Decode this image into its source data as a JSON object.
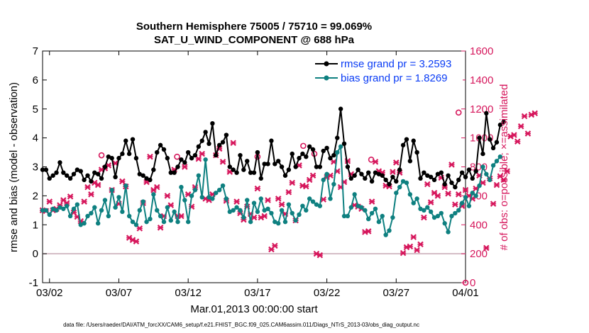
{
  "chart_data": {
    "type": "line",
    "title": "Southern Hemisphere 75005 / 75710 = 99.069%",
    "subtitle": "SAT_U_WIND_COMPONENT @ 688 hPa",
    "xlabel": "Mar.01,2013 00:00:00 start",
    "ylabel_left": "rmse and bias (model - observation)",
    "ylabel_right": "# of obs: o=possible; ×=assimilated",
    "footnote": "data file: /Users/raeder/DAI/ATM_forcXX/CAM6_setup/f.e21.FHIST_BGC.f09_025.CAM6assim.011/Diags_NTrS_2013-03/obs_diag_output.nc",
    "x_tick_labels": [
      "03/02",
      "03/07",
      "03/12",
      "03/17",
      "03/22",
      "03/27",
      "04/01"
    ],
    "x_tick_days": [
      2,
      7,
      12,
      17,
      22,
      27,
      32
    ],
    "xlim": [
      1.5,
      32.0
    ],
    "ylim_left": [
      -1,
      7
    ],
    "yticks_left": [
      "-1",
      "0",
      "1",
      "2",
      "3",
      "4",
      "5",
      "6",
      "7"
    ],
    "ylim_right": [
      0,
      1600
    ],
    "yticks_right": [
      "0",
      "200",
      "400",
      "600",
      "800",
      "1000",
      "1200",
      "1400",
      "1600"
    ],
    "legend_position": "top-right",
    "colors": {
      "rmse": "#000000",
      "bias": "#0e8080",
      "obs": "#d6175c",
      "zero_line": "#c8a8b4",
      "right_axis": "#d6175c",
      "legend_text": "#0a3cf5"
    },
    "series": [
      {
        "name": "rmse grand pr = 3.2593",
        "axis": "left",
        "x_start_day": 1.5,
        "x_step_days": 0.25,
        "values": [
          2.9,
          2.9,
          2.6,
          2.7,
          2.8,
          3.15,
          2.8,
          2.7,
          2.6,
          2.75,
          2.9,
          2.85,
          2.55,
          2.7,
          2.5,
          2.8,
          2.75,
          2.6,
          3.0,
          3.35,
          3.3,
          2.65,
          3.3,
          3.45,
          3.9,
          3.45,
          3.95,
          3.3,
          2.75,
          2.7,
          2.6,
          2.55,
          2.9,
          3.5,
          3.75,
          3.6,
          3.3,
          2.8,
          2.8,
          3.0,
          3.25,
          3.15,
          3.5,
          3.3,
          3.4,
          3.7,
          3.9,
          4.2,
          3.8,
          4.5,
          3.4,
          3.75,
          3.85,
          4.1,
          3.0,
          2.9,
          2.8,
          3.4,
          2.9,
          3.2,
          2.8,
          2.8,
          3.5,
          2.6,
          3.1,
          3.1,
          3.9,
          3.1,
          3.2,
          3.0,
          2.7,
          2.9,
          3.45,
          3.0,
          3.3,
          3.45,
          3.35,
          3.7,
          3.6,
          3.0,
          3.0,
          3.55,
          3.65,
          3.3,
          3.4,
          4.0,
          5.0,
          3.8,
          3.0,
          2.6,
          2.7,
          2.9,
          2.75,
          2.6,
          2.8,
          2.5,
          2.8,
          2.75,
          2.7,
          2.55,
          2.4,
          2.65,
          2.5,
          2.9,
          3.75,
          3.95,
          3.2,
          3.9,
          3.5,
          2.6,
          2.8,
          2.7,
          2.65,
          2.55,
          2.75,
          2.8,
          2.4,
          2.7,
          2.45,
          2.3,
          2.55,
          2.8,
          2.65,
          2.9,
          2.6,
          2.85,
          4.0,
          3.45,
          4.85,
          3.95,
          3.65,
          3.85,
          4.45,
          4.55
        ]
      },
      {
        "name": "bias grand pr = 1.8269",
        "axis": "left",
        "x_start_day": 1.5,
        "x_step_days": 0.25,
        "values": [
          1.5,
          1.5,
          1.35,
          1.55,
          1.5,
          1.6,
          1.55,
          1.65,
          1.3,
          1.55,
          1.7,
          1.0,
          1.05,
          1.3,
          1.4,
          1.6,
          1.05,
          1.5,
          1.85,
          1.3,
          2.2,
          1.6,
          1.95,
          1.45,
          2.35,
          1.3,
          1.1,
          1.0,
          1.5,
          1.8,
          1.1,
          1.2,
          2.05,
          1.5,
          1.3,
          1.1,
          1.6,
          1.15,
          1.45,
          1.1,
          2.3,
          1.85,
          1.1,
          2.0,
          2.2,
          2.7,
          1.95,
          3.25,
          1.95,
          1.9,
          2.1,
          2.2,
          2.35,
          1.9,
          1.45,
          1.5,
          1.6,
          1.5,
          1.25,
          1.85,
          1.1,
          1.75,
          1.45,
          1.9,
          1.5,
          1.55,
          1.4,
          1.1,
          1.05,
          1.5,
          1.1,
          1.7,
          1.4,
          1.15,
          1.35,
          1.65,
          1.5,
          1.9,
          1.8,
          1.7,
          1.65,
          2.55,
          2.75,
          1.9,
          2.4,
          3.5,
          3.7,
          1.3,
          1.3,
          1.6,
          2.05,
          1.65,
          1.6,
          1.5,
          1.2,
          1.4,
          1.55,
          1.1,
          1.3,
          0.65,
          0.8,
          1.25,
          2.1,
          2.3,
          2.5,
          2.45,
          2.05,
          1.75,
          1.9,
          1.55,
          1.5,
          1.6,
          1.45,
          1.25,
          1.3,
          1.4,
          1.05,
          0.75,
          1.3,
          1.4,
          1.5,
          1.75,
          1.95,
          1.65,
          2.1,
          2.0,
          2.35,
          3.0,
          2.75,
          2.55,
          3.05,
          3.2,
          3.35
        ]
      },
      {
        "name": "# of obs assimilated",
        "axis": "right",
        "marker": "x",
        "x_start_day": 1.5,
        "x_step_days": 0.25,
        "values": [
          500,
          495,
          560,
          500,
          510,
          535,
          570,
          550,
          595,
          485,
          455,
          425,
          560,
          660,
          610,
          690,
          675,
          780,
          790,
          810,
          640,
          825,
          545,
          700,
          665,
          310,
          295,
          285,
          375,
          550,
          695,
          870,
          640,
          660,
          380,
          460,
          600,
          535,
          780,
          460,
          460,
          800,
          610,
          525,
          660,
          855,
          890,
          580,
          570,
          610,
          880,
          925,
          835,
          565,
          765,
          965,
          560,
          480,
          435,
          525,
          475,
          450,
          650,
          450,
          460,
          570,
          230,
          255,
          580,
          540,
          475,
          625,
          690,
          430,
          810,
          670,
          665,
          710,
          740,
          200,
          190,
          575,
          730,
          740,
          835,
          770,
          660,
          695,
          840,
          750,
          535,
          525,
          510,
          350,
          355,
          560,
          835,
          770,
          760,
          670,
          665,
          765,
          830,
          760,
          205,
          245,
          250,
          315,
          225,
          265,
          450,
          680,
          555,
          620,
          600,
          725,
          660,
          615,
          815,
          540,
          610,
          530,
          640,
          600,
          580,
          650,
          740,
          690,
          240,
          720,
          545,
          675,
          735,
          710,
          770,
          1010,
          1020,
          975,
          1080,
          1150,
          1030,
          1160,
          1170
        ]
      },
      {
        "name": "# of obs possible",
        "axis": "right",
        "marker": "o",
        "points": [
          {
            "x": 5.75,
            "y": 880
          },
          {
            "x": 11.2,
            "y": 870
          },
          {
            "x": 17.0,
            "y": 870
          },
          {
            "x": 20.3,
            "y": 945
          },
          {
            "x": 21.1,
            "y": 890
          },
          {
            "x": 25.2,
            "y": 850
          },
          {
            "x": 31.5,
            "y": 1175
          },
          {
            "x": 32.0,
            "y": 0
          }
        ]
      }
    ],
    "legend": [
      {
        "label": "rmse grand pr = 3.2593",
        "color": "#000000"
      },
      {
        "label": "bias grand pr = 1.8269",
        "color": "#0e8080"
      }
    ]
  }
}
